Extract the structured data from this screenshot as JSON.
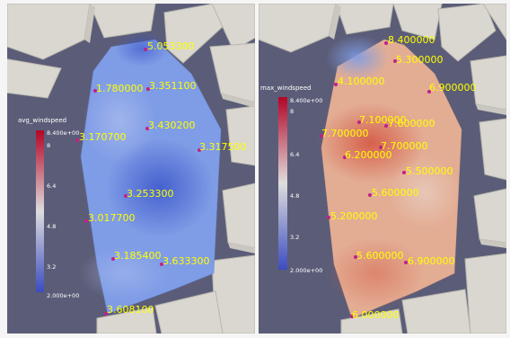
{
  "views": [
    {
      "legend": {
        "title": "avg_windspeed",
        "max": "8.400e+00",
        "min": "2.000e+00",
        "ticks": [
          "8",
          "6.4",
          "4.8",
          "3.2"
        ]
      },
      "probes": [
        {
          "value": "5.053300"
        },
        {
          "value": "1.780000"
        },
        {
          "value": "3.351100"
        },
        {
          "value": "3.170700"
        },
        {
          "value": "3.430200"
        },
        {
          "value": "3.317500"
        },
        {
          "value": "3.253300"
        },
        {
          "value": "3.017700"
        },
        {
          "value": "3.185400"
        },
        {
          "value": "3.633300"
        },
        {
          "value": "3.608100"
        }
      ]
    },
    {
      "legend": {
        "title": "max_windspeed",
        "max": "8.400e+00",
        "min": "2.000e+00",
        "ticks": [
          "8",
          "6.4",
          "4.8",
          "3.2"
        ]
      },
      "probes": [
        {
          "value": "8.400000"
        },
        {
          "value": "5.300000"
        },
        {
          "value": "4.100000"
        },
        {
          "value": "6.900000"
        },
        {
          "value": "7.100000"
        },
        {
          "value": "7.600000"
        },
        {
          "value": "7.700000"
        },
        {
          "value": "7.700000"
        },
        {
          "value": "6.200000"
        },
        {
          "value": "5.500000"
        },
        {
          "value": "5.600000"
        },
        {
          "value": "5.200000"
        },
        {
          "value": "5.600000"
        },
        {
          "value": "6.900000"
        },
        {
          "value": "6.000000"
        }
      ]
    }
  ],
  "colors": {
    "background": "#5b5d78",
    "building": "#d9d7cf",
    "label": "#ffff00",
    "probe": "#c0208a",
    "scale_low": "#3b4cc0",
    "scale_mid": "#dddddd",
    "scale_high": "#b40426"
  }
}
